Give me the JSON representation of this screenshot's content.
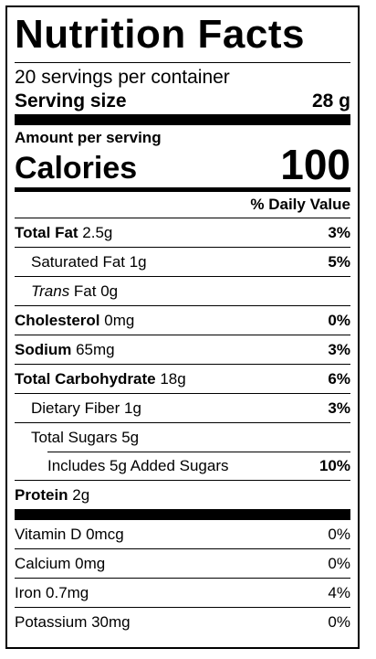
{
  "label": {
    "title": "Nutrition Facts",
    "servings_per_container": "20 servings per container",
    "serving_size_label": "Serving size",
    "serving_size_value": "28 g",
    "amount_per_serving": "Amount per serving",
    "calories_label": "Calories",
    "calories_value": "100",
    "daily_value_header": "% Daily Value",
    "nutrients": [
      {
        "bold": "Total Fat",
        "rest": " 2.5g",
        "pct": "3%"
      },
      {
        "bold": "",
        "rest": "Saturated Fat 1g",
        "pct": "5%"
      },
      {
        "italic": "Trans",
        "rest": " Fat 0g",
        "pct": ""
      },
      {
        "bold": "Cholesterol",
        "rest": " 0mg",
        "pct": "0%"
      },
      {
        "bold": "Sodium",
        "rest": " 65mg",
        "pct": "3%"
      },
      {
        "bold": "Total Carbohydrate",
        "rest": " 18g",
        "pct": "6%"
      },
      {
        "bold": "",
        "rest": "Dietary Fiber 1g",
        "pct": "3%"
      },
      {
        "bold": "",
        "rest": "Total Sugars 5g",
        "pct": ""
      },
      {
        "bold": "",
        "rest": "Includes 5g Added Sugars",
        "pct": "10%"
      },
      {
        "bold": "Protein",
        "rest": " 2g",
        "pct": ""
      }
    ],
    "vitamins": [
      {
        "name": "Vitamin D 0mcg",
        "pct": "0%"
      },
      {
        "name": "Calcium 0mg",
        "pct": "0%"
      },
      {
        "name": "Iron 0.7mg",
        "pct": "4%"
      },
      {
        "name": "Potassium 30mg",
        "pct": "0%"
      }
    ]
  }
}
